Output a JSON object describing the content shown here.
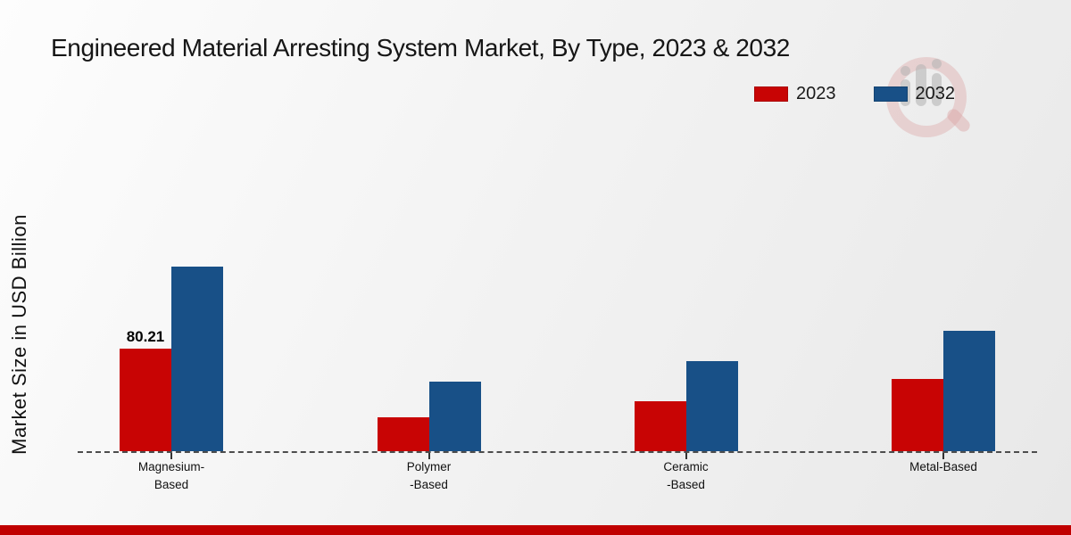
{
  "title": "Engineered Material Arresting System Market, By Type, 2023 & 2032",
  "ylabel": "Market Size in USD Billion",
  "legend": {
    "items": [
      {
        "label": "2023",
        "color": "#c80404"
      },
      {
        "label": "2032",
        "color": "#185087"
      }
    ]
  },
  "footer": {
    "accent_color": "#c00000"
  },
  "watermark": {
    "name": "market-research-magnifier-logo"
  },
  "chart_data": {
    "type": "bar",
    "title": "Engineered Material Arresting System Market, By Type, 2023 & 2032",
    "xlabel": "",
    "ylabel": "Market Size in USD Billion",
    "categories": [
      "Magnesium-\nBased",
      "Polymer\n-Based",
      "Ceramic\n-Based",
      "Metal-Based"
    ],
    "series": [
      {
        "name": "2023",
        "color": "#c80404",
        "values": [
          80.21,
          26.7,
          38.9,
          56.5
        ]
      },
      {
        "name": "2032",
        "color": "#185087",
        "values": [
          144.4,
          54.4,
          70.2,
          94.4
        ]
      }
    ],
    "annotations": [
      {
        "series": "2023",
        "category_index": 0,
        "text": "80.21"
      }
    ],
    "ylim": [
      0,
      160
    ],
    "grid": false,
    "legend_position": "top-right",
    "baseline_style": "dashed"
  }
}
